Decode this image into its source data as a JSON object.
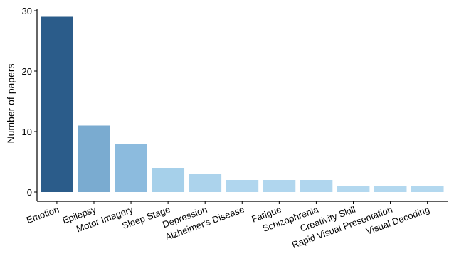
{
  "chart_data": {
    "type": "bar",
    "title": "",
    "xlabel": "",
    "ylabel": "Number of papers",
    "ylim": [
      0,
      30
    ],
    "yticks": [
      0,
      10,
      20,
      30
    ],
    "grid": false,
    "legend": "none",
    "categories": [
      "Emotion",
      "Epilepsy",
      "Motor Imagery",
      "Sleep Stage",
      "Depression",
      "Alzheimer's Disease",
      "Fatigue",
      "Schizophrenia",
      "Creativity Skill",
      "Rapid Visual Presentation",
      "Visual Decoding"
    ],
    "values": [
      29,
      11,
      8,
      4,
      3,
      2,
      2,
      2,
      1,
      1,
      1
    ],
    "colors": [
      "#2b5c8a",
      "#7aabd0",
      "#8cbbde",
      "#a6d0ea",
      "#acd3ec",
      "#b0d6ee",
      "#b0d6ee",
      "#b0d6ee",
      "#b3d8ef",
      "#b3d8ef",
      "#b3d8ef"
    ]
  }
}
